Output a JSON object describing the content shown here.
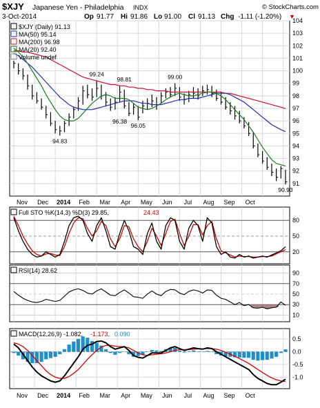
{
  "header": {
    "symbol": "$XJY",
    "name": "Japanese Yen - Philadelphia",
    "exchange": "INDX",
    "source": "© StockCharts.com",
    "date": "3-Oct-2014",
    "quote": {
      "open_label": "Op",
      "open": "91.77",
      "high_label": "Hi",
      "high": "91.86",
      "low_label": "Lo",
      "low": "91.00",
      "close_label": "Cl",
      "close": "91.13",
      "change_label": "Chg",
      "change": "-1.11 (-1.20%)"
    },
    "down_arrow": "▼"
  },
  "colors": {
    "price": "#000000",
    "ma50": "#1f2fb0",
    "ma200": "#c8102e",
    "ma20": "#1a7a1a",
    "sto_k": "#000000",
    "sto_d": "#d40000",
    "rsi_fill": "#a07070",
    "macd": "#000000",
    "signal": "#d40000",
    "histogram": "#1e8fc8",
    "grid": "#d8d8d8",
    "panel_border": "#000000"
  },
  "months": [
    "Nov",
    "Dec",
    "2014",
    "Feb",
    "Mar",
    "Apr",
    "May",
    "Jun",
    "Jul",
    "Aug",
    "Sep",
    "Oct"
  ],
  "chart_data": [
    {
      "id": "price",
      "type": "ohlc",
      "title": "$XJY (Daily) 91.13",
      "ylim": [
        90,
        104
      ],
      "yticks": [
        91,
        92,
        93,
        94,
        95,
        96,
        97,
        98,
        99,
        100,
        101,
        102,
        103,
        104
      ],
      "legend": [
        {
          "label": "$XJY (Daily) 91.13",
          "series": "price"
        },
        {
          "label": "MA(50) 95.14",
          "series": "ma50"
        },
        {
          "label": "MA(200) 96.98",
          "series": "ma200"
        },
        {
          "label": "MA(20) 92.40",
          "series": "ma20"
        },
        {
          "label": "Volume undef",
          "series": "volume"
        }
      ],
      "annotations": [
        {
          "label": "99.24",
          "week": 18,
          "value": 99.24
        },
        {
          "label": "98.81",
          "week": 24,
          "value": 98.81
        },
        {
          "label": "99.00",
          "week": 35,
          "value": 99.0
        },
        {
          "label": "94.83",
          "week": 10,
          "value": 94.83
        },
        {
          "label": "96.38",
          "week": 23,
          "value": 96.38
        },
        {
          "label": "96.05",
          "week": 27,
          "value": 96.05
        },
        {
          "label": "90.93",
          "week": 59,
          "value": 90.93
        }
      ],
      "price_weeks": [
        [
          100.8,
          100.2,
          100.6
        ],
        [
          100.6,
          99.7,
          100.0
        ],
        [
          100.2,
          99.3,
          99.6
        ],
        [
          99.7,
          98.5,
          98.8
        ],
        [
          98.9,
          97.7,
          98.0
        ],
        [
          98.3,
          97.4,
          97.6
        ],
        [
          97.8,
          96.9,
          97.1
        ],
        [
          97.2,
          96.2,
          96.5
        ],
        [
          96.7,
          95.6,
          95.8
        ],
        [
          96.0,
          95.0,
          95.3
        ],
        [
          95.6,
          94.83,
          95.2
        ],
        [
          96.0,
          95.1,
          95.8
        ],
        [
          96.6,
          95.6,
          96.3
        ],
        [
          97.1,
          96.2,
          96.9
        ],
        [
          97.9,
          96.8,
          97.6
        ],
        [
          98.8,
          97.3,
          98.4
        ],
        [
          98.9,
          97.8,
          98.1
        ],
        [
          98.6,
          97.6,
          97.9
        ],
        [
          99.24,
          97.9,
          98.6
        ],
        [
          98.9,
          97.7,
          98.0
        ],
        [
          98.3,
          97.2,
          97.5
        ],
        [
          97.8,
          96.8,
          97.1
        ],
        [
          97.9,
          96.9,
          97.5
        ],
        [
          98.81,
          97.5,
          98.3
        ],
        [
          98.5,
          97.0,
          97.2
        ],
        [
          97.5,
          96.38,
          96.6
        ],
        [
          97.4,
          96.5,
          97.1
        ],
        [
          97.2,
          96.05,
          96.3
        ],
        [
          97.6,
          96.6,
          97.2
        ],
        [
          97.8,
          96.9,
          97.4
        ],
        [
          98.1,
          97.1,
          97.6
        ],
        [
          97.9,
          96.9,
          97.3
        ],
        [
          98.3,
          97.4,
          98.0
        ],
        [
          98.6,
          97.8,
          98.3
        ],
        [
          98.7,
          97.9,
          98.1
        ],
        [
          99.0,
          98.0,
          98.6
        ],
        [
          98.7,
          97.6,
          97.9
        ],
        [
          98.2,
          97.3,
          97.7
        ],
        [
          98.4,
          97.5,
          98.1
        ],
        [
          98.7,
          97.8,
          98.2
        ],
        [
          98.6,
          97.7,
          98.0
        ],
        [
          98.8,
          98.0,
          98.4
        ],
        [
          98.9,
          98.1,
          98.5
        ],
        [
          98.8,
          97.9,
          98.2
        ],
        [
          98.5,
          97.6,
          97.8
        ],
        [
          98.3,
          97.3,
          97.5
        ],
        [
          97.9,
          96.9,
          97.1
        ],
        [
          97.5,
          96.5,
          96.8
        ],
        [
          97.2,
          96.1,
          96.4
        ],
        [
          96.8,
          95.8,
          96.0
        ],
        [
          96.3,
          95.4,
          95.6
        ],
        [
          95.9,
          94.8,
          95.0
        ],
        [
          95.1,
          93.8,
          94.0
        ],
        [
          94.2,
          93.1,
          93.3
        ],
        [
          93.6,
          92.6,
          92.8
        ],
        [
          93.1,
          92.1,
          92.3
        ],
        [
          92.6,
          91.6,
          91.9
        ],
        [
          92.2,
          91.2,
          91.5
        ],
        [
          92.4,
          91.4,
          92.2
        ],
        [
          92.1,
          90.93,
          91.13
        ]
      ],
      "ma50": [
        101.4,
        101.2,
        100.9,
        100.6,
        100.3,
        99.9,
        99.5,
        99.1,
        98.7,
        98.3,
        97.9,
        97.6,
        97.3,
        97.1,
        97.0,
        96.9,
        96.9,
        96.9,
        97.0,
        97.1,
        97.2,
        97.3,
        97.4,
        97.5,
        97.6,
        97.6,
        97.6,
        97.5,
        97.4,
        97.4,
        97.3,
        97.3,
        97.3,
        97.4,
        97.5,
        97.6,
        97.7,
        97.7,
        97.8,
        97.8,
        97.8,
        97.9,
        98.0,
        98.1,
        98.2,
        98.2,
        98.2,
        98.1,
        97.9,
        97.7,
        97.5,
        97.2,
        96.9,
        96.6,
        96.3,
        96.0,
        95.7,
        95.5,
        95.3,
        95.14
      ],
      "ma200": [
        101.6,
        101.6,
        101.5,
        101.5,
        101.4,
        101.3,
        101.2,
        101.1,
        100.9,
        100.7,
        100.5,
        100.3,
        100.1,
        99.9,
        99.7,
        99.5,
        99.4,
        99.3,
        99.2,
        99.1,
        99.0,
        98.9,
        98.9,
        98.8,
        98.8,
        98.7,
        98.7,
        98.6,
        98.6,
        98.5,
        98.5,
        98.4,
        98.4,
        98.4,
        98.3,
        98.3,
        98.3,
        98.3,
        98.3,
        98.3,
        98.3,
        98.3,
        98.3,
        98.3,
        98.3,
        98.3,
        98.2,
        98.2,
        98.1,
        98.0,
        97.9,
        97.8,
        97.7,
        97.6,
        97.5,
        97.4,
        97.3,
        97.2,
        97.1,
        96.98
      ],
      "ma20": [
        101.8,
        101.5,
        101.1,
        100.6,
        100.0,
        99.4,
        98.8,
        98.1,
        97.5,
        96.9,
        96.4,
        96.1,
        96.0,
        96.0,
        96.2,
        96.6,
        97.0,
        97.4,
        97.7,
        98.0,
        98.1,
        98.0,
        97.8,
        97.8,
        97.8,
        97.7,
        97.4,
        97.1,
        97.0,
        96.9,
        97.0,
        97.2,
        97.4,
        97.7,
        97.9,
        98.1,
        98.2,
        98.1,
        98.0,
        98.0,
        98.1,
        98.2,
        98.3,
        98.3,
        98.2,
        98.0,
        97.7,
        97.3,
        96.9,
        96.5,
        96.1,
        95.6,
        95.1,
        94.5,
        93.9,
        93.4,
        92.9,
        92.6,
        92.5,
        92.4
      ]
    },
    {
      "id": "sto",
      "type": "line",
      "title": "Full STO %K(14,3) %D(3) 29.85, 24.43",
      "legend": [
        {
          "label": "Full STO %K(14,3) %D(3) 29.85,",
          "series": "k"
        },
        {
          "label": "24.43",
          "series": "d"
        }
      ],
      "ylim": [
        0,
        100
      ],
      "yticks": [
        20,
        50,
        80
      ],
      "k": [
        85,
        60,
        40,
        25,
        15,
        10,
        12,
        20,
        15,
        10,
        15,
        40,
        70,
        85,
        88,
        80,
        55,
        40,
        70,
        85,
        60,
        30,
        25,
        55,
        80,
        60,
        30,
        25,
        15,
        55,
        75,
        40,
        25,
        70,
        85,
        80,
        40,
        25,
        65,
        80,
        70,
        40,
        85,
        75,
        30,
        15,
        20,
        10,
        8,
        15,
        10,
        12,
        8,
        10,
        12,
        10,
        14,
        18,
        22,
        29.85
      ],
      "d": [
        88,
        70,
        50,
        35,
        22,
        15,
        12,
        16,
        17,
        14,
        13,
        30,
        55,
        75,
        85,
        83,
        65,
        50,
        60,
        78,
        70,
        45,
        30,
        45,
        70,
        68,
        45,
        30,
        20,
        40,
        65,
        50,
        32,
        55,
        78,
        82,
        55,
        32,
        50,
        72,
        72,
        52,
        70,
        78,
        45,
        22,
        18,
        14,
        10,
        12,
        11,
        11,
        10,
        10,
        11,
        11,
        12,
        16,
        20,
        24.43
      ]
    },
    {
      "id": "rsi",
      "type": "line",
      "title": "RSI(14) 28.62",
      "legend": [
        {
          "label": "RSI(14) 28.62",
          "series": "rsi"
        }
      ],
      "ylim": [
        0,
        100
      ],
      "yticks": [
        10,
        30,
        50,
        70,
        90
      ],
      "values": [
        55,
        48,
        42,
        38,
        35,
        34,
        36,
        40,
        38,
        36,
        38,
        46,
        54,
        58,
        60,
        57,
        52,
        50,
        56,
        60,
        54,
        48,
        47,
        53,
        58,
        52,
        45,
        44,
        42,
        50,
        56,
        50,
        47,
        55,
        59,
        58,
        52,
        49,
        55,
        58,
        56,
        52,
        58,
        57,
        48,
        42,
        40,
        35,
        30,
        34,
        28,
        30,
        24,
        23,
        25,
        22,
        24,
        25,
        35,
        28.62
      ]
    },
    {
      "id": "macd",
      "type": "line",
      "title": "MACD(12,26,9) -1.082, -1.173, 0.090",
      "legend": [
        {
          "label": "MACD(12,26,9) -1.082,",
          "series": "macd"
        },
        {
          "label": "-1.173,",
          "series": "signal"
        },
        {
          "label": "0.090",
          "series": "histogram"
        }
      ],
      "ylim": [
        -1.4,
        0.8
      ],
      "yticks": [
        -1.0,
        -0.5,
        0.0,
        0.5
      ],
      "macd": [
        0.3,
        0.15,
        -0.1,
        -0.35,
        -0.6,
        -0.8,
        -0.95,
        -1.05,
        -1.15,
        -1.2,
        -1.15,
        -0.95,
        -0.7,
        -0.45,
        -0.2,
        0.1,
        0.25,
        0.3,
        0.4,
        0.42,
        0.35,
        0.2,
        0.1,
        0.15,
        0.2,
        0.05,
        -0.15,
        -0.22,
        -0.25,
        -0.15,
        -0.05,
        -0.05,
        -0.05,
        0.05,
        0.15,
        0.2,
        0.12,
        0.05,
        0.1,
        0.15,
        0.12,
        0.1,
        0.15,
        0.12,
        0.0,
        -0.1,
        -0.2,
        -0.3,
        -0.4,
        -0.5,
        -0.6,
        -0.7,
        -0.9,
        -1.05,
        -1.15,
        -1.25,
        -1.3,
        -1.3,
        -1.2,
        -1.082
      ],
      "signal": [
        0.35,
        0.3,
        0.2,
        0.05,
        -0.15,
        -0.35,
        -0.55,
        -0.75,
        -0.9,
        -1.0,
        -1.05,
        -1.05,
        -0.98,
        -0.85,
        -0.7,
        -0.5,
        -0.3,
        -0.12,
        0.05,
        0.18,
        0.25,
        0.25,
        0.22,
        0.2,
        0.2,
        0.15,
        0.05,
        -0.05,
        -0.12,
        -0.15,
        -0.12,
        -0.1,
        -0.08,
        -0.05,
        0.0,
        0.05,
        0.08,
        0.08,
        0.08,
        0.1,
        0.11,
        0.11,
        0.12,
        0.12,
        0.1,
        0.05,
        -0.02,
        -0.1,
        -0.18,
        -0.27,
        -0.36,
        -0.46,
        -0.58,
        -0.7,
        -0.82,
        -0.93,
        -1.03,
        -1.1,
        -1.15,
        -1.173
      ]
    }
  ]
}
